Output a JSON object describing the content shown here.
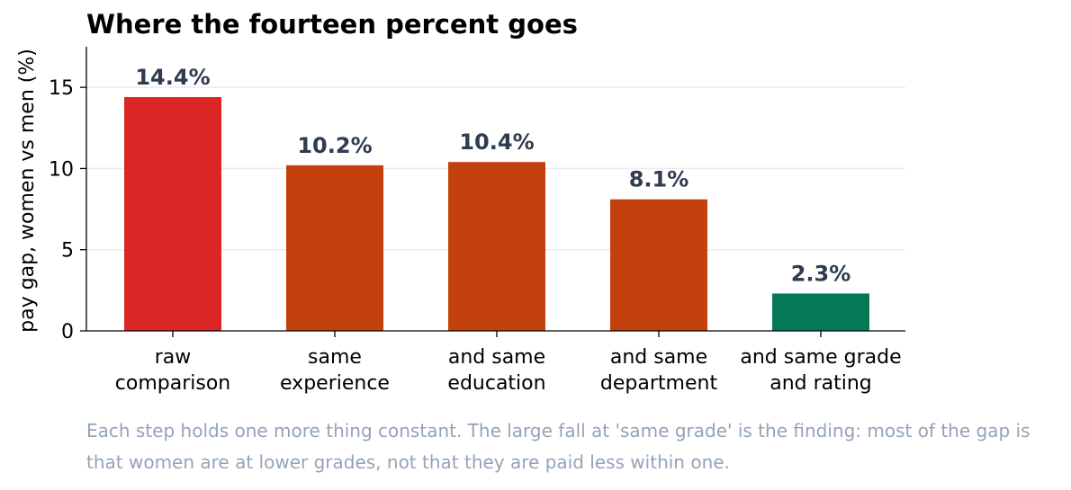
{
  "chart_data": {
    "type": "bar",
    "title": "Where the fourteen percent goes",
    "ylabel": "pay gap, women vs men (%)",
    "xlabel": "",
    "ylim": [
      0,
      17.5
    ],
    "yticks": [
      0,
      5,
      10,
      15
    ],
    "grid": "horizontal",
    "categories": [
      [
        "raw",
        "comparison"
      ],
      [
        "same",
        "experience"
      ],
      [
        "and same",
        "education"
      ],
      [
        "and same",
        "department"
      ],
      [
        "and same grade",
        "and rating"
      ]
    ],
    "values": [
      14.4,
      10.2,
      10.4,
      8.1,
      2.3
    ],
    "value_labels": [
      "14.4%",
      "10.2%",
      "10.4%",
      "8.1%",
      "2.3%"
    ],
    "colors": [
      "#dc2626",
      "#c2410c",
      "#c2410c",
      "#c2410c",
      "#047857"
    ]
  },
  "note": "Each step holds one more thing constant. The large fall at 'same grade' is the finding: most of the gap is that women are at lower grades, not that they are paid less within one."
}
